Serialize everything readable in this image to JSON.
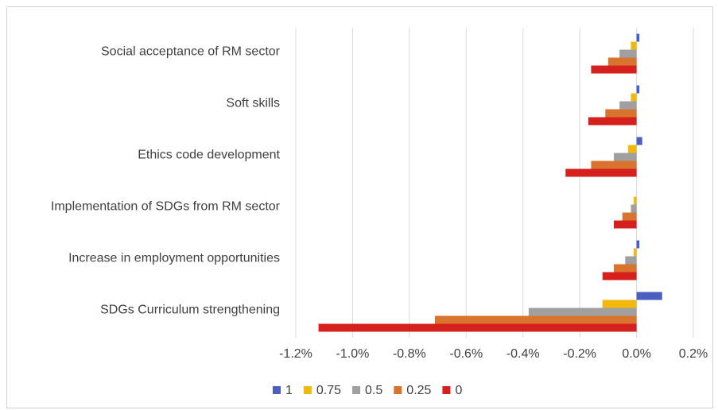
{
  "chart_data": {
    "type": "barh",
    "categories": [
      "Social acceptance of RM sector",
      "Soft skills",
      "Ethics code development",
      "Implementation of SDGs from RM sector",
      "Increase in employment opportunities",
      "SDGs Curriculum strengthening"
    ],
    "series": [
      {
        "name": "1",
        "color": "#4a5fc1",
        "values": [
          0.01,
          0.01,
          0.02,
          0.0,
          0.01,
          0.09
        ]
      },
      {
        "name": "0.75",
        "color": "#f2b80c",
        "values": [
          -0.02,
          -0.02,
          -0.03,
          -0.01,
          -0.01,
          -0.12
        ]
      },
      {
        "name": "0.5",
        "color": "#a0a0a0",
        "values": [
          -0.06,
          -0.06,
          -0.08,
          -0.02,
          -0.04,
          -0.38
        ]
      },
      {
        "name": "0.25",
        "color": "#d9742e",
        "values": [
          -0.1,
          -0.11,
          -0.16,
          -0.05,
          -0.08,
          -0.71
        ]
      },
      {
        "name": "0",
        "color": "#d6201e",
        "values": [
          -0.16,
          -0.17,
          -0.25,
          -0.08,
          -0.12,
          -1.12
        ]
      }
    ],
    "xlim": [
      -1.2,
      0.2
    ],
    "xticks": [
      {
        "value": -1.2,
        "label": "-1.2%"
      },
      {
        "value": -1.0,
        "label": "-1.0%"
      },
      {
        "value": -0.8,
        "label": "-0.8%"
      },
      {
        "value": -0.6,
        "label": "-0.6%"
      },
      {
        "value": -0.4,
        "label": "-0.4%"
      },
      {
        "value": -0.2,
        "label": "-0.2%"
      },
      {
        "value": 0.0,
        "label": "0.0%"
      },
      {
        "value": 0.2,
        "label": "0.2%"
      }
    ],
    "grid": true,
    "legend": "bottom"
  }
}
